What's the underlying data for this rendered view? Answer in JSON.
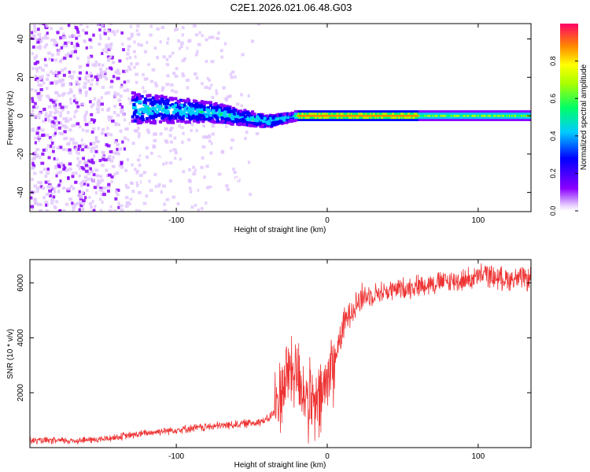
{
  "figure_title": "C2E1.2026.021.06.48.G03",
  "colors": {
    "snr_line": "#ee3333",
    "axis": "#000000",
    "background": "#ffffff"
  },
  "chart_data": [
    {
      "type": "heatmap",
      "title": "C2E1.2026.021.06.48.G03",
      "xlabel": "Height of straight line (km)",
      "ylabel": "Frequency (Hz)",
      "xlim": [
        -197,
        135
      ],
      "ylim": [
        -50,
        48
      ],
      "x_ticks": [
        -100,
        0,
        100
      ],
      "y_ticks": [
        -40,
        -20,
        0,
        20,
        40
      ],
      "colorbar": {
        "label": "Normalized spectral amplitude",
        "range": [
          0,
          1
        ],
        "ticks": [
          "0.0",
          "0.2",
          "0.4",
          "0.6",
          "0.8"
        ],
        "tick_values": [
          0.0,
          0.2,
          0.4,
          0.6,
          0.8
        ]
      },
      "features": {
        "noise_region_x": [
          -197,
          -20
        ],
        "signal_band_x": [
          -130,
          135
        ],
        "signal_center_freq_hz": [
          {
            "x": -130,
            "f": 4
          },
          {
            "x": -80,
            "f": 2
          },
          {
            "x": -40,
            "f": -3
          },
          {
            "x": -20,
            "f": 0
          },
          {
            "x": 135,
            "f": 0
          }
        ],
        "high_amplitude_x": [
          -20,
          60
        ]
      }
    },
    {
      "type": "line",
      "xlabel": "Height of straight line (km)",
      "ylabel": "SNR (10 * v/v)",
      "xlim": [
        -197,
        135
      ],
      "ylim": [
        0,
        6850
      ],
      "x_ticks": [
        -100,
        0,
        100
      ],
      "y_ticks": [
        2000,
        4000,
        6000
      ],
      "series": [
        {
          "name": "SNR",
          "x": [
            -197,
            -170,
            -150,
            -130,
            -110,
            -90,
            -70,
            -50,
            -40,
            -35,
            -30,
            -25,
            -20,
            -15,
            -10,
            -5,
            0,
            5,
            10,
            15,
            20,
            25,
            30,
            40,
            50,
            60,
            70,
            80,
            90,
            100,
            105,
            110,
            120,
            135
          ],
          "values": [
            250,
            250,
            300,
            450,
            600,
            700,
            800,
            900,
            1000,
            1300,
            2200,
            2900,
            2700,
            2000,
            1400,
            1600,
            2500,
            3200,
            4300,
            5000,
            5300,
            5500,
            5600,
            5700,
            5800,
            5900,
            6000,
            6050,
            6100,
            6200,
            6350,
            6200,
            6150,
            6150
          ]
        }
      ]
    }
  ]
}
